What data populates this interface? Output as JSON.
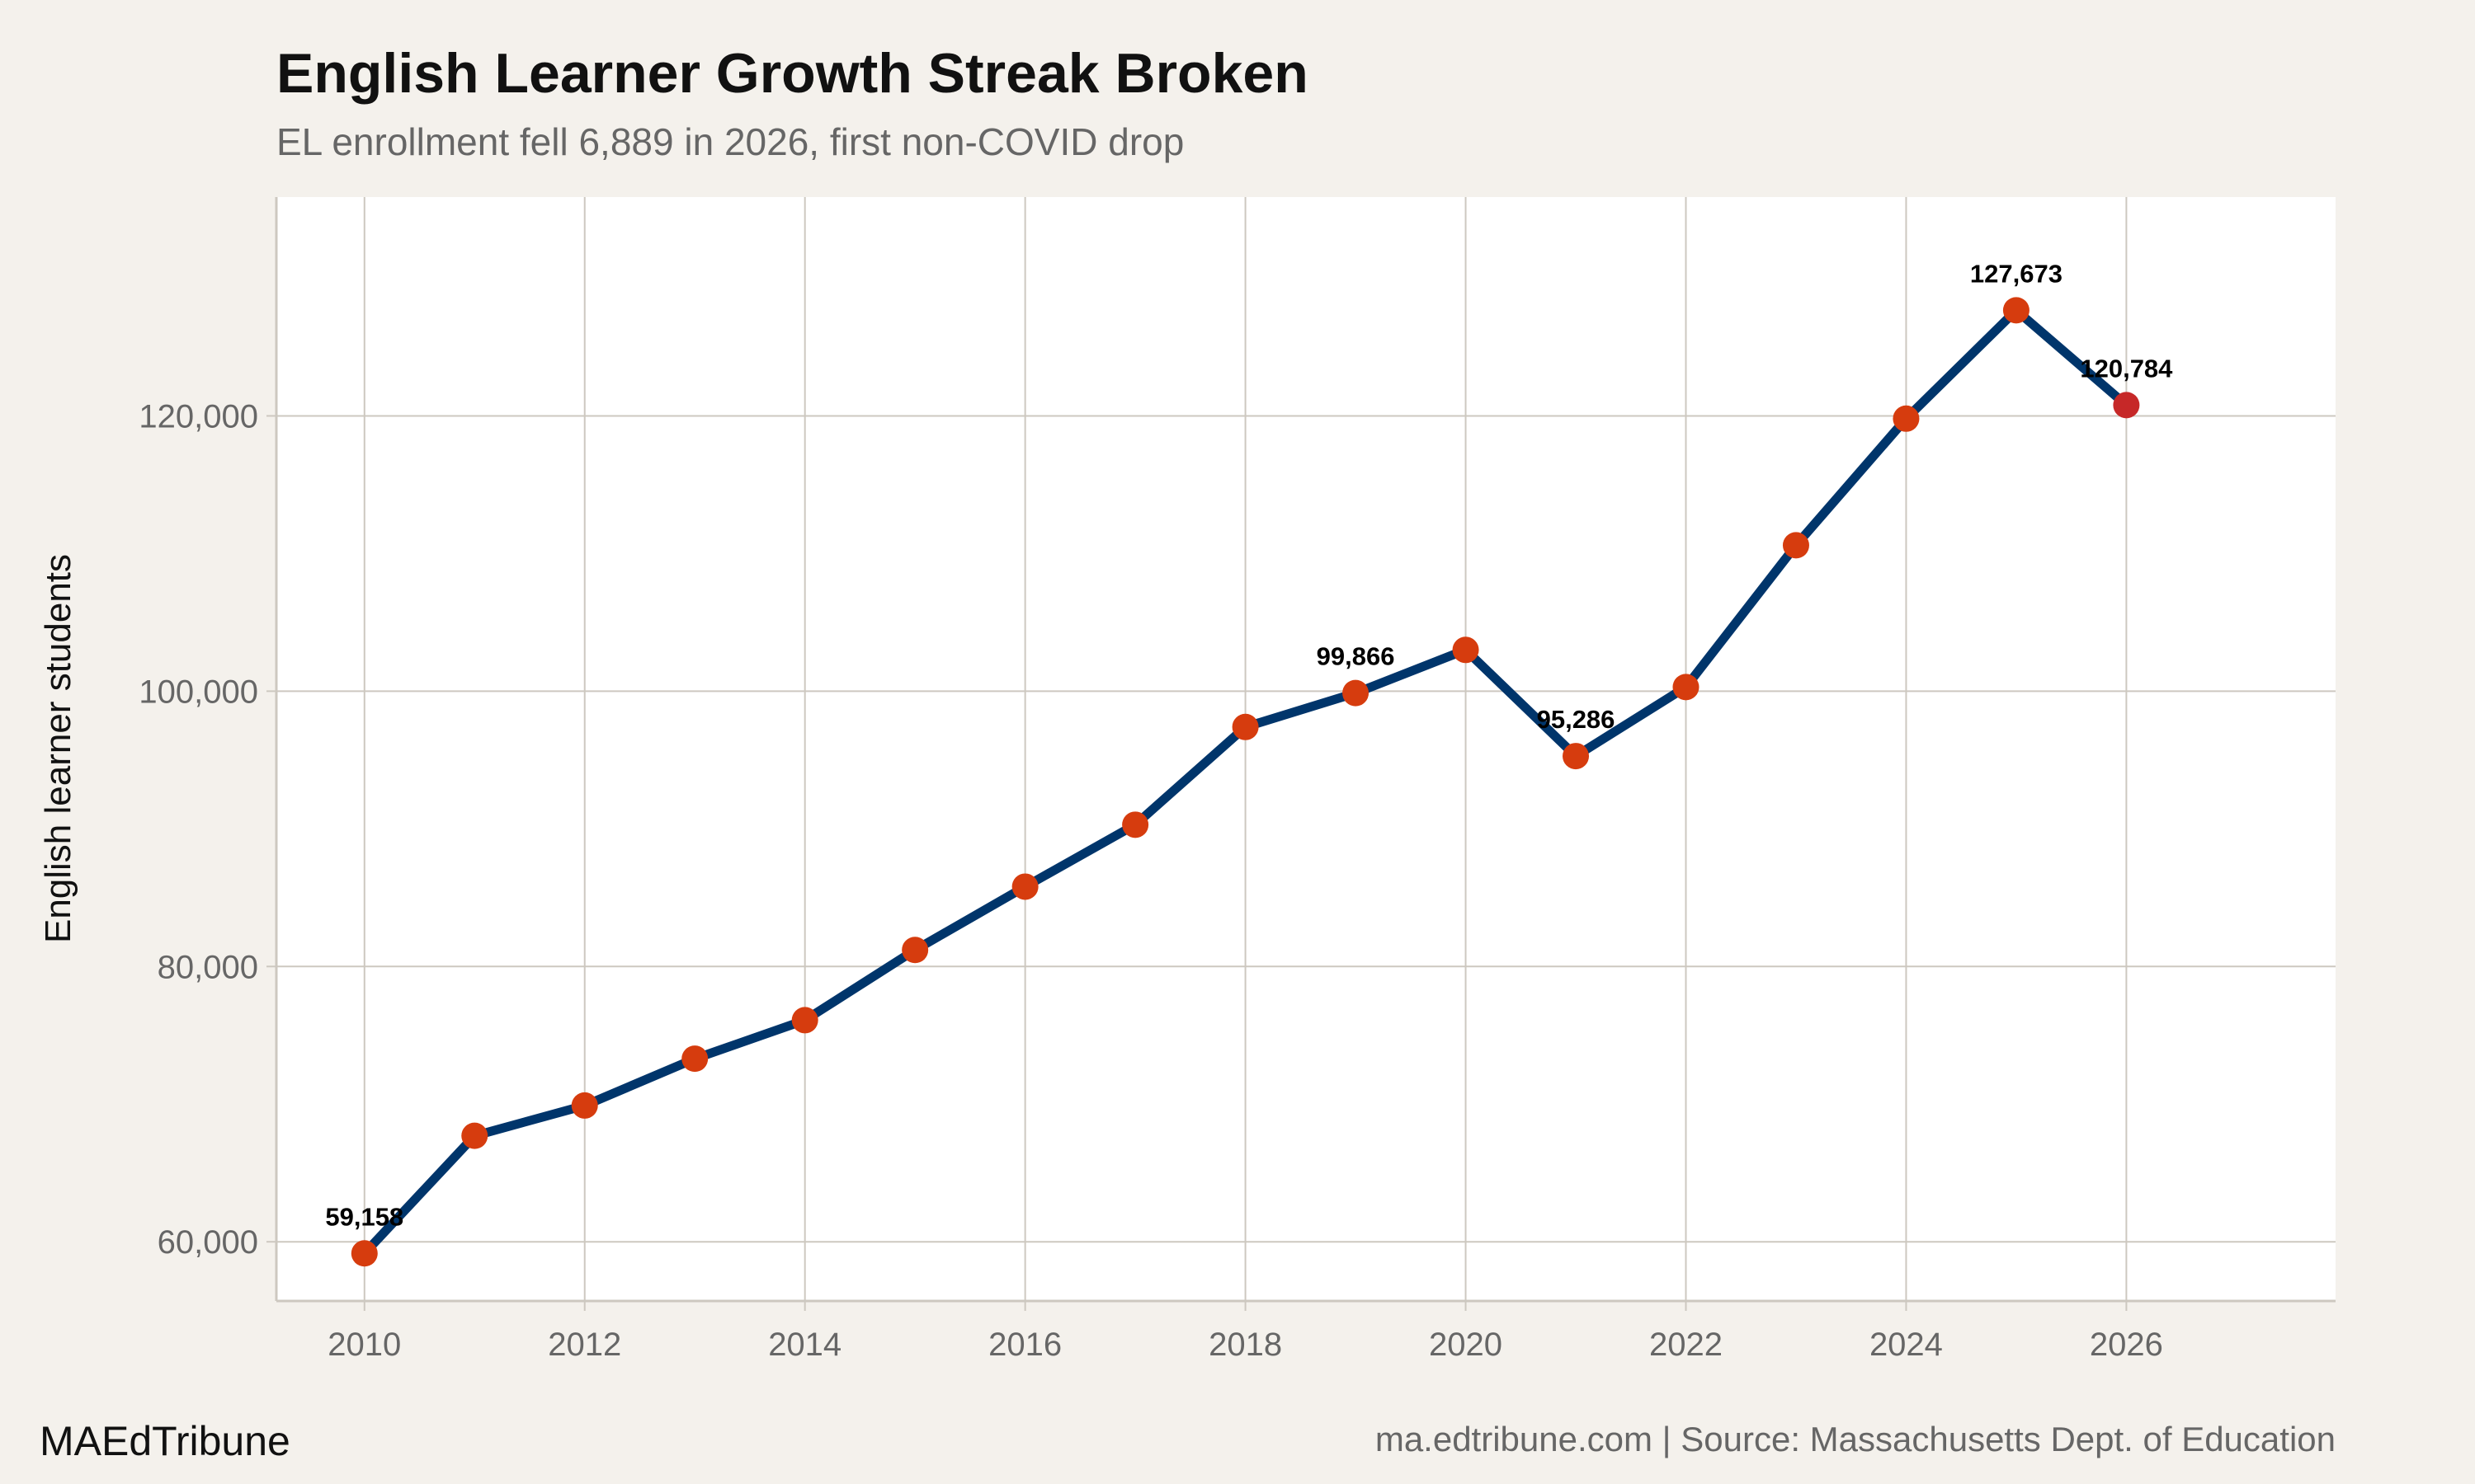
{
  "title": "English Learner Growth Streak Broken",
  "subtitle": "EL enrollment fell 6,889 in 2026, first non-COVID drop",
  "brand": "MAEdTribune",
  "source": "ma.edtribune.com | Source: Massachusetts Dept. of Education",
  "colors": {
    "background": "#f4f1ec",
    "panel": "#ffffff",
    "grid": "#cdc8c0",
    "line": "#00356b",
    "point": "#d63c0e",
    "last_point": "#c62828"
  },
  "chart_data": {
    "type": "line",
    "title": "English Learner Growth Streak Broken",
    "subtitle": "EL enrollment fell 6,889 in 2026, first non-COVID drop",
    "xlabel": "",
    "ylabel": "English learner students",
    "x": [
      2010,
      2011,
      2012,
      2013,
      2014,
      2015,
      2016,
      2017,
      2018,
      2019,
      2020,
      2021,
      2022,
      2023,
      2024,
      2025,
      2026
    ],
    "series": [
      {
        "values": [
          59158,
          67700,
          69900,
          73300,
          76100,
          81200,
          85800,
          90300,
          97400,
          99866,
          103000,
          95286,
          100300,
          110600,
          119800,
          127673,
          120784
        ]
      }
    ],
    "data_labels": [
      {
        "x": 2010,
        "text": "59,158"
      },
      {
        "x": 2019,
        "text": "99,866"
      },
      {
        "x": 2021,
        "text": "95,286"
      },
      {
        "x": 2025,
        "text": "127,673"
      },
      {
        "x": 2026,
        "text": "120,784"
      }
    ],
    "xticks": [
      2010,
      2012,
      2014,
      2016,
      2018,
      2020,
      2022,
      2024,
      2026
    ],
    "xtick_labels": [
      "2010",
      "2012",
      "2014",
      "2016",
      "2018",
      "2020",
      "2022",
      "2024",
      "2026"
    ],
    "yticks": [
      60000,
      80000,
      100000,
      120000
    ],
    "ytick_labels": [
      "60,000",
      "80,000",
      "100,000",
      "120,000"
    ],
    "xlim": [
      2009.2,
      2027.9
    ],
    "ylim": [
      55700,
      135900
    ],
    "grid": true,
    "legend": "none"
  }
}
